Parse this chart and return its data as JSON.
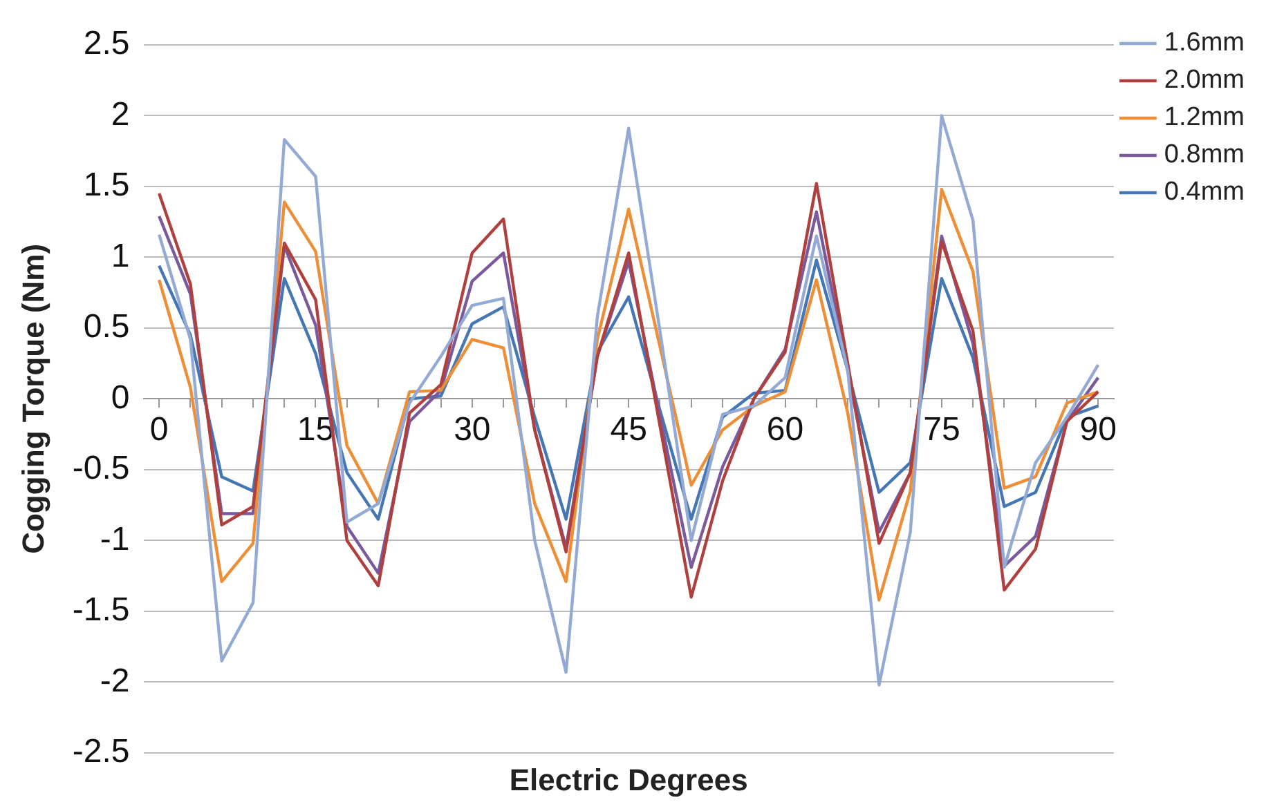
{
  "chart_data": {
    "type": "line",
    "xlabel": "Electric Degrees",
    "ylabel": "Cogging Torque (Nm)",
    "categories": [
      "0",
      null,
      null,
      null,
      null,
      "15",
      null,
      null,
      null,
      null,
      "30",
      null,
      null,
      null,
      null,
      "45",
      null,
      null,
      null,
      null,
      "60",
      null,
      null,
      null,
      null,
      "75",
      null,
      null,
      null,
      null,
      "90"
    ],
    "series": [
      {
        "name": "1.6mm",
        "color": "#93aad4",
        "values": [
          1.16,
          0.42,
          -1.85,
          -1.44,
          1.83,
          1.57,
          -0.87,
          -0.74,
          -0.03,
          0.3,
          0.66,
          0.71,
          -1.0,
          -1.93,
          0.58,
          1.91,
          0.48,
          -1.0,
          -0.11,
          -0.05,
          0.15,
          1.15,
          0.2,
          -2.02,
          -0.94,
          2.0,
          1.26,
          -1.19,
          -0.45,
          -0.13,
          0.24
        ]
      },
      {
        "name": "2.0mm",
        "color": "#b0403e",
        "values": [
          1.45,
          0.81,
          -0.89,
          -0.76,
          1.1,
          0.7,
          -1.0,
          -1.32,
          -0.1,
          0.1,
          1.03,
          1.27,
          -0.22,
          -1.08,
          0.3,
          1.03,
          -0.19,
          -1.4,
          -0.58,
          0.0,
          0.33,
          1.52,
          0.25,
          -1.02,
          -0.52,
          1.11,
          0.48,
          -1.35,
          -1.06,
          -0.16,
          0.05
        ]
      },
      {
        "name": "1.2mm",
        "color": "#ee8f38",
        "values": [
          0.84,
          0.08,
          -1.29,
          -1.02,
          1.39,
          1.04,
          -0.33,
          -0.74,
          0.05,
          0.06,
          0.42,
          0.36,
          -0.74,
          -1.29,
          0.42,
          1.34,
          0.37,
          -0.61,
          -0.22,
          -0.05,
          0.05,
          0.84,
          -0.1,
          -1.42,
          -0.65,
          1.48,
          0.9,
          -0.63,
          -0.55,
          -0.03,
          0.05
        ]
      },
      {
        "name": "0.8mm",
        "color": "#7a5a9c",
        "values": [
          1.29,
          0.74,
          -0.81,
          -0.81,
          1.08,
          0.52,
          -0.9,
          -1.23,
          -0.16,
          0.06,
          0.83,
          1.03,
          -0.22,
          -1.05,
          0.3,
          0.97,
          -0.12,
          -1.19,
          -0.48,
          0.0,
          0.35,
          1.32,
          0.2,
          -0.94,
          -0.52,
          1.15,
          0.39,
          -1.18,
          -0.97,
          -0.16,
          0.15
        ]
      },
      {
        "name": "0.4mm",
        "color": "#4677b5",
        "values": [
          0.94,
          0.45,
          -0.55,
          -0.65,
          0.85,
          0.32,
          -0.52,
          -0.85,
          0.0,
          0.02,
          0.53,
          0.65,
          -0.13,
          -0.85,
          0.33,
          0.72,
          -0.08,
          -0.85,
          -0.13,
          0.04,
          0.06,
          0.98,
          0.2,
          -0.66,
          -0.45,
          0.85,
          0.29,
          -0.76,
          -0.66,
          -0.13,
          -0.05
        ]
      }
    ],
    "ylim": [
      -2.5,
      2.5
    ],
    "yticks": [
      -2.5,
      -2,
      -1.5,
      -1,
      -0.5,
      0,
      0.5,
      1,
      1.5,
      2,
      2.5
    ],
    "grid": "y",
    "legend": "top right",
    "marker": "none",
    "line_style": "solid"
  }
}
